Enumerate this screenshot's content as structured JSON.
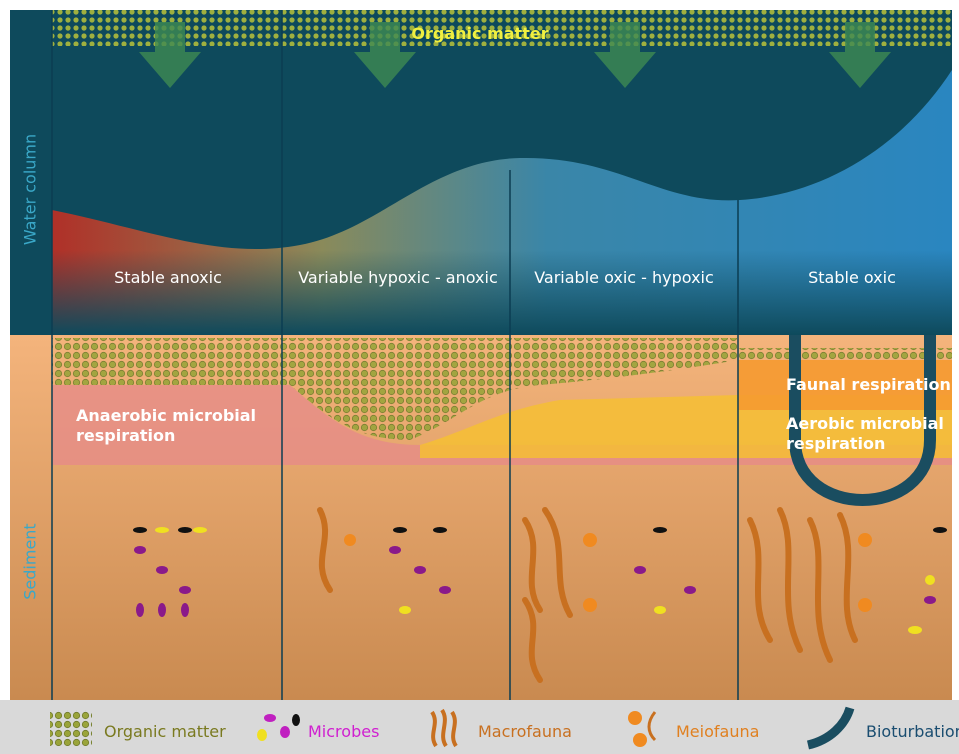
{
  "header": {
    "title": "Organic matter"
  },
  "zones": [
    "Water column",
    "Sediment"
  ],
  "columns": [
    "Stable anoxic",
    "Variable hypoxic - anoxic",
    "Variable oxic - hypoxic",
    "Stable oxic"
  ],
  "processes": [
    "Anaerobic microbial respiration",
    "Faunal respiration",
    "Aerobic microbial respiration"
  ],
  "legend": [
    "Organic matter",
    "Microbes",
    "Macrofauna",
    "Meiofauna",
    "Bioturbation"
  ]
}
